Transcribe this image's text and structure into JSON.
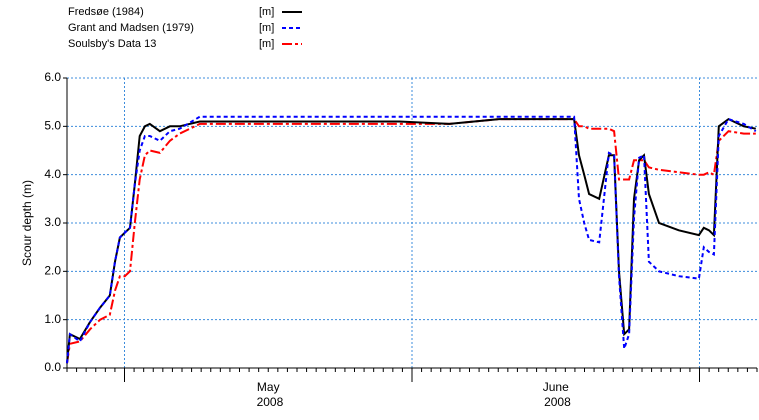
{
  "chart_data": {
    "type": "line",
    "ylabel": "Scour depth (m)",
    "x": [
      4.8,
      4.81,
      4.845,
      4.88,
      4.915,
      4.949,
      4.967,
      4.984,
      5.001,
      5.019,
      5.036,
      5.053,
      5.071,
      5.088,
      5.123,
      5.158,
      5.192,
      5.262,
      5.435,
      5.609,
      5.783,
      5.956,
      6.13,
      6.303,
      6.477,
      6.564,
      6.581,
      6.599,
      6.616,
      6.651,
      6.685,
      6.703,
      6.72,
      6.738,
      6.755,
      6.772,
      6.79,
      6.807,
      6.824,
      6.859,
      6.928,
      6.998,
      7.015,
      7.033,
      7.05,
      7.067,
      7.101,
      7.154,
      7.196
    ],
    "series": [
      {
        "name": "Fredsøe (1984)",
        "unit": "[m]",
        "color": "#000000",
        "dash": "none",
        "values": [
          0.1,
          0.7,
          0.6,
          0.95,
          1.25,
          1.5,
          2.2,
          2.7,
          2.8,
          2.9,
          3.8,
          4.8,
          5.0,
          5.05,
          4.9,
          5.0,
          5.0,
          5.1,
          5.1,
          5.1,
          5.1,
          5.1,
          5.05,
          5.15,
          5.15,
          5.15,
          4.4,
          4.0,
          3.6,
          3.5,
          4.4,
          4.4,
          2.0,
          0.7,
          0.8,
          3.5,
          4.3,
          4.4,
          3.6,
          3.0,
          2.85,
          2.75,
          2.9,
          2.85,
          2.75,
          5.0,
          5.15,
          5.0,
          4.95
        ]
      },
      {
        "name": "Grant and Madsen (1979)",
        "unit": "[m]",
        "color": "#0000ff",
        "dash": "4,3",
        "values": [
          0.1,
          0.7,
          0.55,
          0.95,
          1.25,
          1.5,
          2.2,
          2.7,
          2.8,
          2.9,
          3.8,
          4.5,
          4.8,
          4.8,
          4.7,
          4.9,
          4.95,
          5.2,
          5.2,
          5.2,
          5.2,
          5.2,
          5.2,
          5.2,
          5.2,
          5.2,
          3.5,
          3.0,
          2.65,
          2.6,
          4.45,
          4.4,
          1.9,
          0.4,
          0.7,
          3.1,
          4.35,
          4.4,
          2.2,
          2.0,
          1.9,
          1.85,
          2.5,
          2.4,
          2.35,
          4.8,
          5.15,
          5.05,
          4.9
        ]
      },
      {
        "name": "Soulsby's Data 13",
        "unit": "[m]",
        "color": "#ff0000",
        "dash": "10,3,3,3",
        "values": [
          0.1,
          0.5,
          0.55,
          0.8,
          1.0,
          1.1,
          1.6,
          1.9,
          1.9,
          2.0,
          3.0,
          3.9,
          4.4,
          4.5,
          4.45,
          4.7,
          4.85,
          5.05,
          5.05,
          5.05,
          5.05,
          5.05,
          5.05,
          5.15,
          5.15,
          5.15,
          5.0,
          5.0,
          4.95,
          4.95,
          4.95,
          4.9,
          3.9,
          3.9,
          3.9,
          4.3,
          4.3,
          4.3,
          4.15,
          4.1,
          4.05,
          4.0,
          4.0,
          4.05,
          4.0,
          4.7,
          4.9,
          4.85,
          4.85
        ]
      }
    ],
    "xlim": [
      4.8,
      7.2
    ],
    "xticks": [
      {
        "value": 5.5,
        "label": "May 2008"
      },
      {
        "value": 6.5,
        "label": "June 2008"
      }
    ],
    "xgrid": [
      5,
      6,
      7
    ],
    "ylim": [
      0,
      6
    ],
    "yticks": [
      {
        "value": 0,
        "label": "0.0"
      },
      {
        "value": 1,
        "label": "1.0"
      },
      {
        "value": 2,
        "label": "2.0"
      },
      {
        "value": 3,
        "label": "3.0"
      },
      {
        "value": 4,
        "label": "4.0"
      },
      {
        "value": 5,
        "label": "5.0"
      },
      {
        "value": 6,
        "label": "6.0"
      }
    ],
    "grid": true,
    "grid_color": "#3c8cdc"
  }
}
